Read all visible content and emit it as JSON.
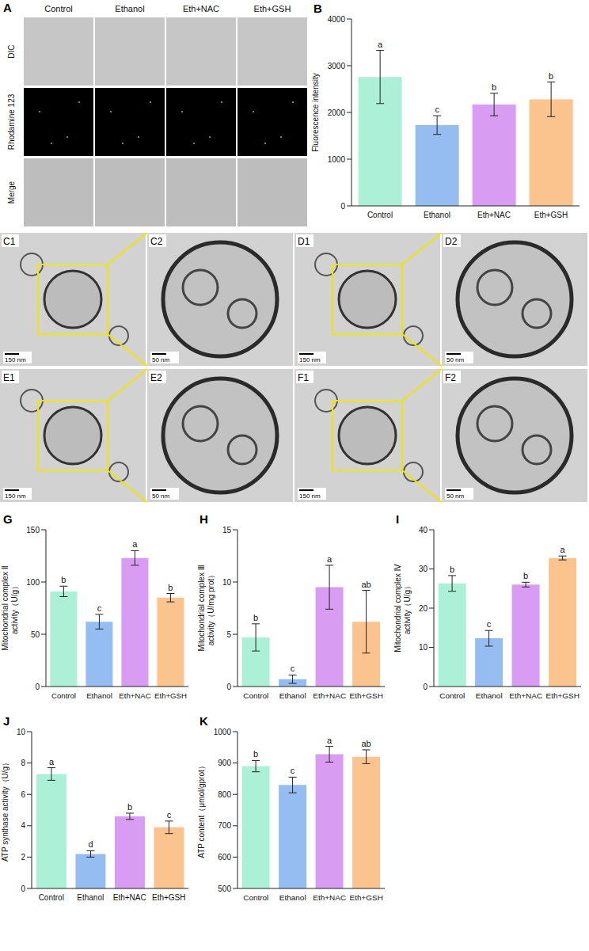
{
  "images": {
    "A": {
      "panel": "A",
      "columns": [
        "Control",
        "Ethanol",
        "Eth+NAC",
        "Eth+GSH"
      ],
      "rows": [
        "DIC",
        "Rhodamine 123",
        "Merge"
      ]
    },
    "tem": [
      {
        "panel": "C1",
        "scale": "150 nm"
      },
      {
        "panel": "C2",
        "scale": "50 nm"
      },
      {
        "panel": "D1",
        "scale": "150 nm"
      },
      {
        "panel": "D2",
        "scale": "50 nm"
      },
      {
        "panel": "E1",
        "scale": "150 nm"
      },
      {
        "panel": "E2",
        "scale": "50 nm"
      },
      {
        "panel": "F1",
        "scale": "150 nm"
      },
      {
        "panel": "F2",
        "scale": "50 nm"
      }
    ]
  },
  "chart_data": [
    {
      "panel": "B",
      "type": "bar",
      "y_label": "Fluorescence intensity",
      "categories": [
        "Control",
        "Ethanol",
        "Eth+NAC",
        "Eth+GSH"
      ],
      "values": [
        2760,
        1730,
        2170,
        2280
      ],
      "errors": [
        570,
        200,
        240,
        370
      ],
      "annotations": [
        "a",
        "c",
        "b",
        "b"
      ],
      "colors": [
        "#adf0d8",
        "#96bdf2",
        "#d89cf2",
        "#fbc48e"
      ],
      "ylim": [
        0,
        4000
      ],
      "yticks": [
        0,
        1000,
        2000,
        3000,
        4000
      ]
    },
    {
      "panel": "G",
      "type": "bar",
      "y_label": "Mitochondrial complex Ⅱ activity（U/g）",
      "categories": [
        "Control",
        "Ethanol",
        "Eth+NAC",
        "Eth+GSH"
      ],
      "values": [
        91,
        62,
        123,
        85
      ],
      "errors": [
        5,
        7,
        7,
        4
      ],
      "annotations": [
        "b",
        "c",
        "a",
        "b"
      ],
      "colors": [
        "#adf0d8",
        "#96bdf2",
        "#d89cf2",
        "#fbc48e"
      ],
      "ylim": [
        0,
        150
      ],
      "yticks": [
        0,
        50,
        100,
        150
      ]
    },
    {
      "panel": "H",
      "type": "bar",
      "y_label": "Mitochondrial complex Ⅲ activity（U/mg prot）",
      "categories": [
        "Control",
        "Ethanol",
        "Eth+NAC",
        "Eth+GSH"
      ],
      "values": [
        4.7,
        0.7,
        9.5,
        6.2
      ],
      "errors": [
        1.3,
        0.4,
        2.1,
        3.0
      ],
      "annotations": [
        "b",
        "c",
        "a",
        "ab"
      ],
      "colors": [
        "#adf0d8",
        "#96bdf2",
        "#d89cf2",
        "#fbc48e"
      ],
      "ylim": [
        0,
        15
      ],
      "yticks": [
        0,
        5,
        10,
        15
      ]
    },
    {
      "panel": "I",
      "type": "bar",
      "y_label": "Mitochondrial complex Ⅳ activity（U/g）",
      "categories": [
        "Control",
        "Ethanol",
        "Eth+NAC",
        "Eth+GSH"
      ],
      "values": [
        26.3,
        12.3,
        26,
        32.8
      ],
      "errors": [
        2,
        2,
        0.6,
        0.5
      ],
      "annotations": [
        "b",
        "c",
        "b",
        "a"
      ],
      "colors": [
        "#adf0d8",
        "#96bdf2",
        "#d89cf2",
        "#fbc48e"
      ],
      "ylim": [
        0,
        40
      ],
      "yticks": [
        0,
        10,
        20,
        30,
        40
      ]
    },
    {
      "panel": "J",
      "type": "bar",
      "y_label": "ATP synthase activity（U/g）",
      "categories": [
        "Control",
        "Ethanol",
        "Eth+NAC",
        "Eth+GSH"
      ],
      "values": [
        7.3,
        2.2,
        4.6,
        3.9
      ],
      "errors": [
        0.4,
        0.2,
        0.2,
        0.4
      ],
      "annotations": [
        "a",
        "d",
        "b",
        "c"
      ],
      "colors": [
        "#adf0d8",
        "#96bdf2",
        "#d89cf2",
        "#fbc48e"
      ],
      "ylim": [
        0,
        10
      ],
      "yticks": [
        0,
        2,
        4,
        6,
        8,
        10
      ]
    },
    {
      "panel": "K",
      "type": "bar",
      "y_label": "ATP content（μmol/gprot）",
      "categories": [
        "Control",
        "Ethanol",
        "Eth+NAC",
        "Eth+GSH"
      ],
      "values": [
        890,
        830,
        928,
        920
      ],
      "errors": [
        18,
        25,
        25,
        22
      ],
      "annotations": [
        "b",
        "c",
        "a",
        "ab"
      ],
      "colors": [
        "#adf0d8",
        "#96bdf2",
        "#d89cf2",
        "#fbc48e"
      ],
      "ylim": [
        500,
        1000
      ],
      "yticks": [
        500,
        600,
        700,
        800,
        900,
        1000
      ]
    }
  ]
}
